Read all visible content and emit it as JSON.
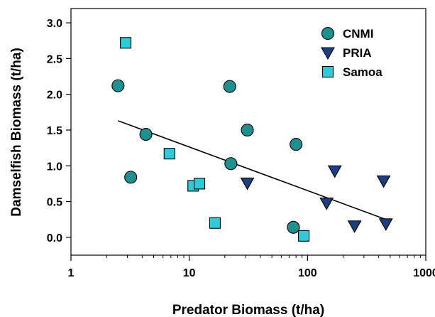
{
  "chart_data": {
    "type": "scatter",
    "title": "",
    "xlabel": "Predator Biomass (t/ha)",
    "ylabel": "Damselfish Biomass (t/ha)",
    "x_scale": "log",
    "xlim": [
      1,
      1000
    ],
    "ylim": [
      -0.25,
      3.2
    ],
    "x_ticks": [
      {
        "value": 1,
        "label": "1"
      },
      {
        "value": 10,
        "label": "10"
      },
      {
        "value": 100,
        "label": "100"
      },
      {
        "value": 1000,
        "label": "1000"
      }
    ],
    "y_ticks": [
      {
        "value": 0.0,
        "label": "0.0"
      },
      {
        "value": 0.5,
        "label": "0.5"
      },
      {
        "value": 1.0,
        "label": "1.0"
      },
      {
        "value": 1.5,
        "label": "1.5"
      },
      {
        "value": 2.0,
        "label": "2.0"
      },
      {
        "value": 2.5,
        "label": "2.5"
      },
      {
        "value": 3.0,
        "label": "3.0"
      }
    ],
    "grid": false,
    "legend_position": "top-right",
    "series": [
      {
        "name": "CNMI",
        "marker": "circle",
        "color": "#1f8f8f",
        "points": [
          {
            "x": 2.5,
            "y": 2.12
          },
          {
            "x": 3.2,
            "y": 0.84
          },
          {
            "x": 4.3,
            "y": 1.44
          },
          {
            "x": 22,
            "y": 2.11
          },
          {
            "x": 22.5,
            "y": 1.03
          },
          {
            "x": 31,
            "y": 1.5
          },
          {
            "x": 80,
            "y": 1.3
          },
          {
            "x": 76,
            "y": 0.14
          }
        ]
      },
      {
        "name": "PRIA",
        "marker": "triangle-down",
        "color": "#1d3e7f",
        "points": [
          {
            "x": 31,
            "y": 0.76
          },
          {
            "x": 145,
            "y": 0.48
          },
          {
            "x": 170,
            "y": 0.93
          },
          {
            "x": 250,
            "y": 0.16
          },
          {
            "x": 440,
            "y": 0.79
          },
          {
            "x": 460,
            "y": 0.19
          }
        ]
      },
      {
        "name": "Samoa",
        "marker": "square",
        "color": "#2ecbd8",
        "points": [
          {
            "x": 2.9,
            "y": 2.72
          },
          {
            "x": 6.8,
            "y": 1.17
          },
          {
            "x": 10.8,
            "y": 0.72
          },
          {
            "x": 12.2,
            "y": 0.75
          },
          {
            "x": 16.5,
            "y": 0.2
          },
          {
            "x": 93,
            "y": 0.02
          }
        ]
      }
    ],
    "trendline": {
      "x": [
        2.5,
        460
      ],
      "y": [
        1.63,
        0.25
      ],
      "color": "#000000"
    }
  }
}
